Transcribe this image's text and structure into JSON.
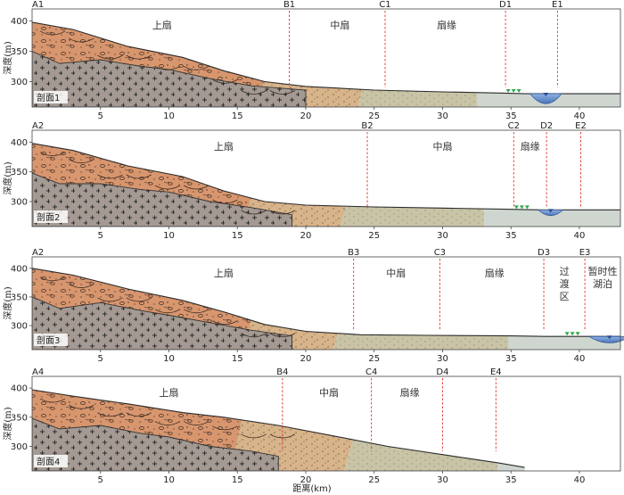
{
  "axis": {
    "y_label": "深度(m)",
    "x_label": "距离(km)",
    "y_ticks": [
      "400",
      "350",
      "300"
    ],
    "x_ticks": [
      "5",
      "10",
      "15",
      "20",
      "25",
      "30",
      "35",
      "40"
    ],
    "x_range_km": [
      0,
      43
    ],
    "y_range_m": [
      258,
      420
    ]
  },
  "profiles": [
    {
      "name": "剖面1",
      "left_point": "A1",
      "points": [
        {
          "label": "B1",
          "x": 18.8
        },
        {
          "label": "C1",
          "x": 25.8
        },
        {
          "label": "D1",
          "x": 34.6
        },
        {
          "label": "E1",
          "x": 38.4
        }
      ],
      "zones": [
        {
          "text": "上扇",
          "x": 9.5
        },
        {
          "text": "中扇",
          "x": 22.5
        },
        {
          "text": "扇缘",
          "x": 30.3
        }
      ]
    },
    {
      "name": "剖面2",
      "left_point": "A2",
      "points": [
        {
          "label": "B2",
          "x": 24.5
        },
        {
          "label": "C2",
          "x": 35.2
        },
        {
          "label": "D2",
          "x": 37.6
        },
        {
          "label": "E2",
          "x": 40.1
        }
      ],
      "zones": [
        {
          "text": "上扇",
          "x": 14.0
        },
        {
          "text": "中扇",
          "x": 30.0
        },
        {
          "text": "扇缘",
          "x": 36.4
        }
      ]
    },
    {
      "name": "剖面3",
      "left_point": "A2",
      "points": [
        {
          "label": "B3",
          "x": 23.5
        },
        {
          "label": "C3",
          "x": 29.8
        },
        {
          "label": "D3",
          "x": 37.4
        },
        {
          "label": "E3",
          "x": 40.4
        }
      ],
      "zones": [
        {
          "text": "上扇",
          "x": 14.0
        },
        {
          "text": "中扇",
          "x": 26.6
        },
        {
          "text": "扇缘",
          "x": 33.8
        }
      ],
      "stacked_zones": [
        {
          "lines": [
            "过",
            "渡",
            "区"
          ],
          "x": 38.9
        },
        {
          "lines": [
            "暂时性",
            "湖泊"
          ],
          "x": 41.7
        }
      ]
    },
    {
      "name": "剖面4",
      "left_point": "A4",
      "points": [
        {
          "label": "B4",
          "x": 18.3
        },
        {
          "label": "C4",
          "x": 24.8
        },
        {
          "label": "D4",
          "x": 30.0
        },
        {
          "label": "E4",
          "x": 33.9
        }
      ],
      "zones": [
        {
          "text": "上扇",
          "x": 10.0
        },
        {
          "text": "中扇",
          "x": 21.7
        },
        {
          "text": "扇缘",
          "x": 27.6
        }
      ]
    }
  ],
  "colors": {
    "upper_fan": "#d8966e",
    "mid_fan": "#d8b48a",
    "fan_edge": "#c9c4a6",
    "bedrock": "#a49a93",
    "lake": "#5b86c8",
    "marker_line": "#e0302b",
    "grass": "#2fa84a"
  }
}
